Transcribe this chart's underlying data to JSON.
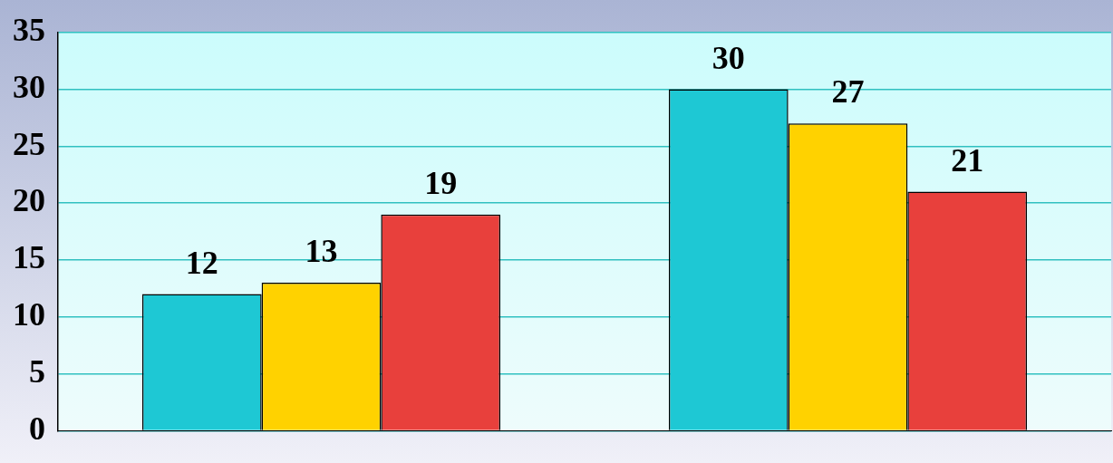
{
  "chart_data": {
    "type": "bar",
    "categories": [
      null,
      null
    ],
    "series": [
      {
        "color": "#1ec8d4",
        "values": [
          12,
          30
        ]
      },
      {
        "color": "#ffd200",
        "values": [
          13,
          27
        ]
      },
      {
        "color": "#e8403c",
        "values": [
          19,
          21
        ]
      }
    ],
    "ylim": [
      0,
      35
    ],
    "yticks": [
      0,
      5,
      10,
      15,
      20,
      25,
      30,
      35
    ],
    "grid": "y",
    "data_labels": true,
    "tick_labels": "y"
  }
}
